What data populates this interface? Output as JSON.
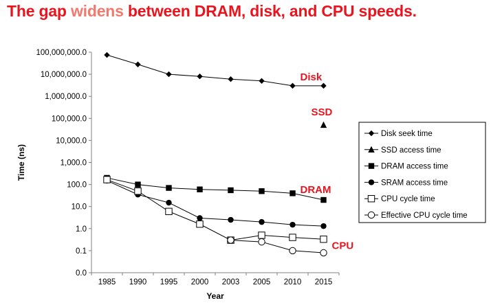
{
  "title": {
    "prefix": "The gap ",
    "highlight": "widens",
    "suffix": " between DRAM, disk, and CPU speeds."
  },
  "colors": {
    "title": "#e8151f",
    "highlight": "#f07a6e",
    "annotation": "#e8151f"
  },
  "chart_data": {
    "type": "line",
    "yscale": "log",
    "categories": [
      "1985",
      "1990",
      "1995",
      "2000",
      "2003",
      "2005",
      "2010",
      "2015"
    ],
    "xlabel": "Year",
    "ylabel": "Time (ns)",
    "ytick_values": [
      0,
      0.1,
      1,
      10,
      100,
      1000,
      10000,
      100000,
      1000000,
      10000000,
      100000000
    ],
    "ytick_labels": [
      "0.0",
      "0.1",
      "1.0",
      "10.0",
      "100.0",
      "1,000.0",
      "10,000.0",
      "100,000.0",
      "1,000,000.0",
      "10,000,000.0",
      "100,000,000.0"
    ],
    "legend_position": "right",
    "series": [
      {
        "name": "Disk seek time",
        "marker": "diamond",
        "values": [
          75000000,
          28000000,
          10000000,
          8000000,
          6000000,
          5000000,
          3000000,
          3000000
        ]
      },
      {
        "name": "SSD access time",
        "marker": "triangle",
        "values": [
          null,
          null,
          null,
          null,
          null,
          null,
          null,
          50000
        ]
      },
      {
        "name": "DRAM access time",
        "marker": "square",
        "values": [
          200,
          100,
          70,
          60,
          55,
          50,
          40,
          20
        ]
      },
      {
        "name": "SRAM access time",
        "marker": "circle",
        "values": [
          150,
          35,
          15,
          3,
          2.5,
          2,
          1.5,
          1.3
        ]
      },
      {
        "name": "CPU cycle time",
        "marker": "square-open",
        "values": [
          166,
          50,
          6,
          1.6,
          0.3,
          0.5,
          0.4,
          0.33
        ]
      },
      {
        "name": "Effective CPU cycle time",
        "marker": "circle-open",
        "values": [
          null,
          null,
          null,
          null,
          0.3,
          0.25,
          0.1,
          0.08
        ]
      }
    ],
    "annotations": [
      {
        "text": "Disk",
        "near_series": "Disk seek time"
      },
      {
        "text": "SSD",
        "near_series": "SSD access time"
      },
      {
        "text": "DRAM",
        "near_series": "DRAM access time"
      },
      {
        "text": "CPU",
        "near_series": "CPU cycle time"
      }
    ]
  }
}
